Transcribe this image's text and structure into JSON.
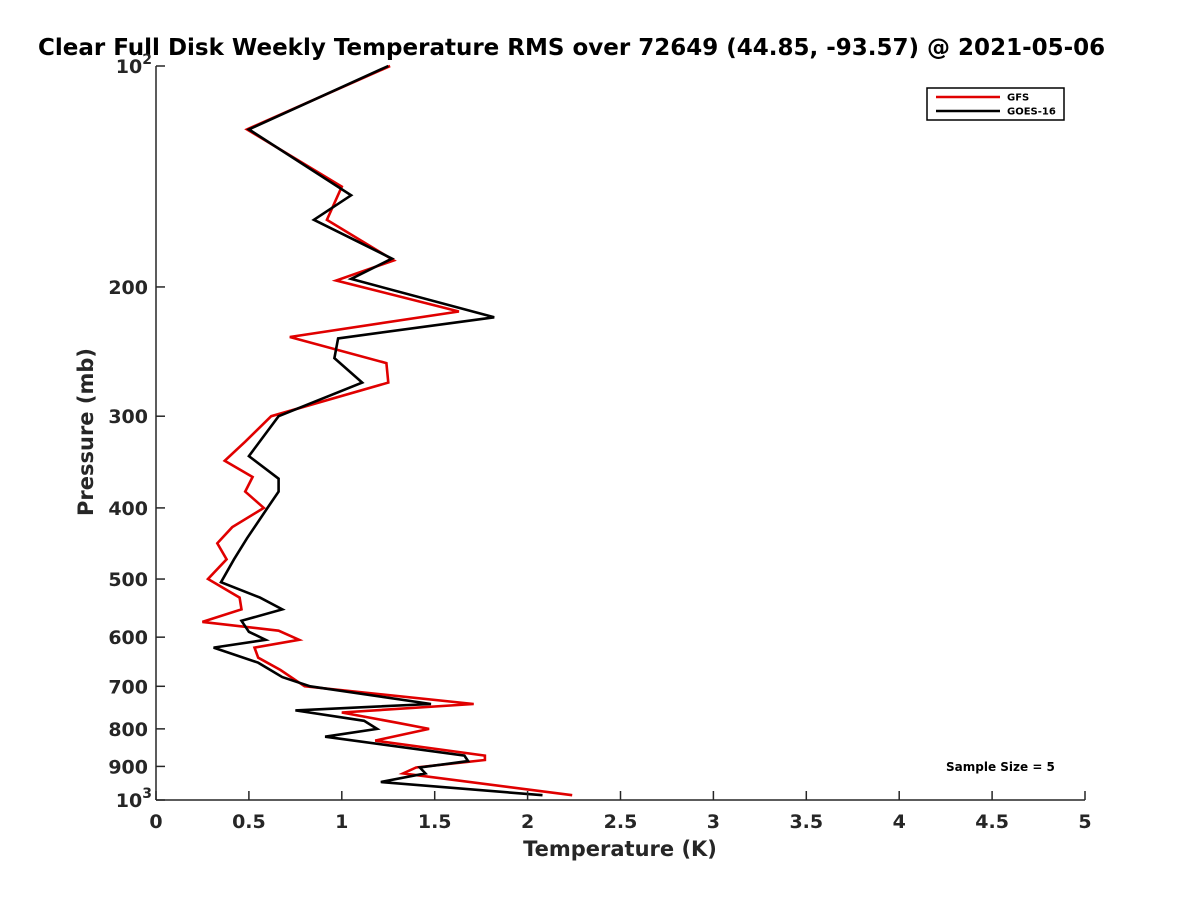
{
  "chart_data": {
    "type": "line",
    "title": "Clear Full Disk Weekly Temperature RMS over 72649 (44.85, -93.57) @ 2021-05-06",
    "xlabel": "Temperature (K)",
    "ylabel": "Pressure (mb)",
    "xlim": [
      0,
      5
    ],
    "ylim": [
      100,
      1000
    ],
    "y_scale": "log",
    "y_reversed": true,
    "grid": false,
    "legend_position": "top-right",
    "x_ticks": [
      {
        "value": 0,
        "label": "0"
      },
      {
        "value": 0.5,
        "label": "0.5"
      },
      {
        "value": 1,
        "label": "1"
      },
      {
        "value": 1.5,
        "label": "1.5"
      },
      {
        "value": 2,
        "label": "2"
      },
      {
        "value": 2.5,
        "label": "2.5"
      },
      {
        "value": 3,
        "label": "3"
      },
      {
        "value": 3.5,
        "label": "3.5"
      },
      {
        "value": 4,
        "label": "4"
      },
      {
        "value": 4.5,
        "label": "4.5"
      },
      {
        "value": 5,
        "label": "5"
      }
    ],
    "y_ticks": [
      {
        "value": 100,
        "label": "10",
        "sup": "2"
      },
      {
        "value": 200,
        "label": "200"
      },
      {
        "value": 300,
        "label": "300"
      },
      {
        "value": 400,
        "label": "400"
      },
      {
        "value": 500,
        "label": "500"
      },
      {
        "value": 600,
        "label": "600"
      },
      {
        "value": 700,
        "label": "700"
      },
      {
        "value": 800,
        "label": "800"
      },
      {
        "value": 900,
        "label": "900"
      },
      {
        "value": 1000,
        "label": "10",
        "sup": "3"
      }
    ],
    "series": [
      {
        "name": "GFS",
        "color": "#e00000",
        "points": [
          [
            1.26,
            100
          ],
          [
            0.49,
            122
          ],
          [
            1.0,
            146
          ],
          [
            0.92,
            162
          ],
          [
            1.28,
            184
          ],
          [
            0.97,
            196
          ],
          [
            1.63,
            216
          ],
          [
            0.72,
            234
          ],
          [
            1.24,
            254
          ],
          [
            1.25,
            270
          ],
          [
            0.62,
            300
          ],
          [
            0.48,
            325
          ],
          [
            0.37,
            345
          ],
          [
            0.52,
            363
          ],
          [
            0.48,
            380
          ],
          [
            0.58,
            400
          ],
          [
            0.41,
            425
          ],
          [
            0.33,
            447
          ],
          [
            0.38,
            470
          ],
          [
            0.28,
            500
          ],
          [
            0.45,
            530
          ],
          [
            0.46,
            550
          ],
          [
            0.25,
            572
          ],
          [
            0.66,
            588
          ],
          [
            0.77,
            605
          ],
          [
            0.53,
            620
          ],
          [
            0.55,
            640
          ],
          [
            0.67,
            665
          ],
          [
            0.8,
            700
          ],
          [
            1.71,
            740
          ],
          [
            1.0,
            760
          ],
          [
            1.3,
            785
          ],
          [
            1.47,
            800
          ],
          [
            1.18,
            830
          ],
          [
            1.77,
            870
          ],
          [
            1.77,
            882
          ],
          [
            1.4,
            903
          ],
          [
            1.33,
            920
          ],
          [
            2.24,
            985
          ]
        ]
      },
      {
        "name": "GOES-16",
        "color": "#000000",
        "points": [
          [
            1.25,
            100
          ],
          [
            0.5,
            122
          ],
          [
            1.05,
            150
          ],
          [
            0.85,
            162
          ],
          [
            1.27,
            183
          ],
          [
            1.05,
            195
          ],
          [
            1.82,
            220
          ],
          [
            0.98,
            235
          ],
          [
            0.96,
            250
          ],
          [
            1.11,
            270
          ],
          [
            0.66,
            300
          ],
          [
            0.5,
            340
          ],
          [
            0.66,
            365
          ],
          [
            0.66,
            380
          ],
          [
            0.6,
            400
          ],
          [
            0.49,
            440
          ],
          [
            0.42,
            470
          ],
          [
            0.35,
            505
          ],
          [
            0.56,
            530
          ],
          [
            0.68,
            550
          ],
          [
            0.46,
            570
          ],
          [
            0.5,
            590
          ],
          [
            0.59,
            605
          ],
          [
            0.31,
            620
          ],
          [
            0.55,
            650
          ],
          [
            0.68,
            680
          ],
          [
            0.83,
            700
          ],
          [
            1.48,
            740
          ],
          [
            0.75,
            755
          ],
          [
            1.12,
            780
          ],
          [
            1.19,
            800
          ],
          [
            0.91,
            820
          ],
          [
            1.66,
            870
          ],
          [
            1.68,
            885
          ],
          [
            1.42,
            903
          ],
          [
            1.45,
            920
          ],
          [
            1.21,
            945
          ],
          [
            2.08,
            985
          ]
        ]
      }
    ],
    "annotations": [
      "Sample Size = 5"
    ]
  }
}
